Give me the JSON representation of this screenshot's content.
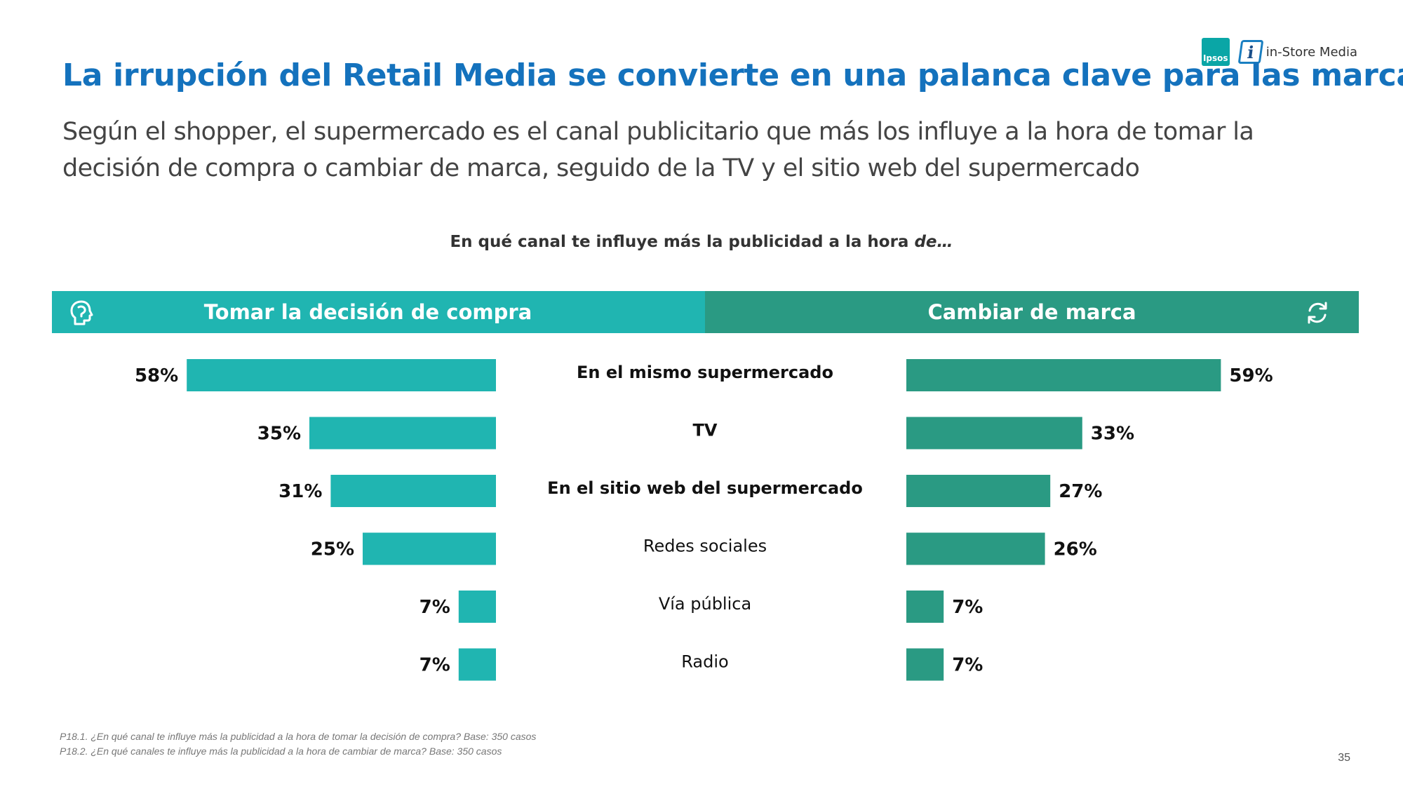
{
  "logos": {
    "ipsos": "Ipsos",
    "instore": "in-Store Media"
  },
  "title": "La irrupción del Retail Media se convierte en una palanca clave para las marcas",
  "subtitle": "Según el shopper, el supermercado es el canal publicitario que más los influye a la hora de tomar la decisión de compra o cambiar de marca, seguido de la TV y el sitio web del supermercado",
  "question": {
    "text": "En qué canal te influye más la publicidad a la hora ",
    "emphasis": "de…"
  },
  "colors": {
    "title": "#1472bd",
    "teal": "#20b5b1",
    "green": "#2a9a83"
  },
  "chart_data": {
    "type": "bar",
    "categories": [
      "En el mismo supermercado",
      "TV",
      "En el sitio web del supermercado",
      "Redes sociales",
      "Vía pública",
      "Radio"
    ],
    "bold_categories": [
      true,
      true,
      true,
      false,
      false,
      false
    ],
    "series": [
      {
        "name": "Tomar la decisión de compra",
        "values": [
          58,
          35,
          31,
          25,
          7,
          7
        ],
        "icon": "head-icon",
        "color": "#20b5b1"
      },
      {
        "name": "Cambiar de marca",
        "values": [
          59,
          33,
          27,
          26,
          7,
          7
        ],
        "icon": "refresh-icon",
        "color": "#2a9a83"
      }
    ],
    "value_suffix": "%"
  },
  "footnotes": [
    "P18.1. ¿En qué canal te influye más la publicidad a la hora de tomar la decisión de compra? Base: 350 casos",
    "P18.2. ¿En qué canales te influye más la publicidad a la hora de cambiar de marca? Base: 350 casos"
  ],
  "page_number": "35"
}
